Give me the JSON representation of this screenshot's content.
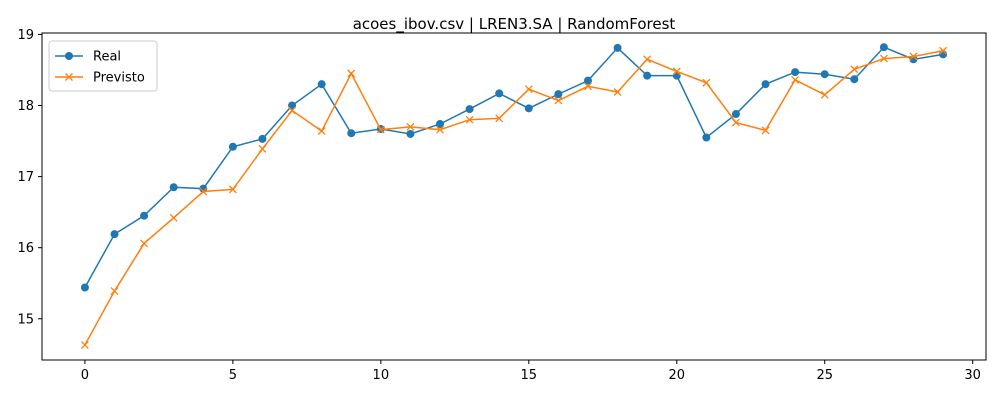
{
  "chart_data": {
    "type": "line",
    "title": "acoes_ibov.csv | LREN3.SA | RandomForest",
    "xlabel": "",
    "ylabel": "",
    "xlim": [
      -1.45,
      30.45
    ],
    "ylim": [
      14.42,
      19.02
    ],
    "xticks": [
      0,
      5,
      10,
      15,
      20,
      25,
      30
    ],
    "yticks": [
      15,
      16,
      17,
      18,
      19
    ],
    "grid": false,
    "legend_position": "top-left",
    "x": [
      0,
      1,
      2,
      3,
      4,
      5,
      6,
      7,
      8,
      9,
      10,
      11,
      12,
      13,
      14,
      15,
      16,
      17,
      18,
      19,
      20,
      21,
      22,
      23,
      24,
      25,
      26,
      27,
      28,
      29
    ],
    "series": [
      {
        "name": "Real",
        "color": "#1f77b4",
        "marker": "circle",
        "values": [
          15.44,
          16.19,
          16.45,
          16.85,
          16.83,
          17.42,
          17.53,
          18.0,
          18.3,
          17.61,
          17.67,
          17.6,
          17.74,
          17.95,
          18.17,
          17.96,
          18.16,
          18.35,
          18.81,
          18.42,
          18.42,
          17.55,
          17.88,
          18.3,
          18.47,
          18.44,
          18.37,
          18.82,
          18.65,
          18.72
        ]
      },
      {
        "name": "Previsto",
        "color": "#ff7f0e",
        "marker": "x",
        "values": [
          14.63,
          15.39,
          16.06,
          16.42,
          16.79,
          16.82,
          17.39,
          17.93,
          17.64,
          18.45,
          17.66,
          17.7,
          17.66,
          17.8,
          17.82,
          18.23,
          18.07,
          18.27,
          18.19,
          18.65,
          18.48,
          18.32,
          17.76,
          17.65,
          18.36,
          18.15,
          18.51,
          18.66,
          18.69,
          18.77
        ]
      }
    ]
  }
}
